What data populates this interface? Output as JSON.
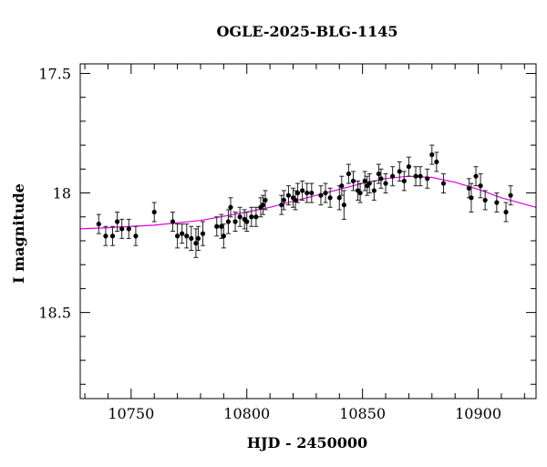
{
  "chart_data": {
    "type": "scatter",
    "title": "OGLE-2025-BLG-1145",
    "xlabel": "HJD - 2450000",
    "ylabel": "I magnitude",
    "xlim": [
      10728,
      10925
    ],
    "ylim": [
      18.86,
      17.46
    ],
    "y_inverted": true,
    "x_ticks": [
      10750,
      10800,
      10850,
      10900
    ],
    "x_tick_labels": [
      "10750",
      "10800",
      "10850",
      "10900"
    ],
    "x_minor_step": 10,
    "y_ticks": [
      17.5,
      18.0,
      18.5
    ],
    "y_tick_labels": [
      "17.5",
      "18",
      "18.5"
    ],
    "y_minor_step": 0.1,
    "grid": false,
    "colors": {
      "points": "#000000",
      "model": "#e000e0",
      "axes": "#000000"
    },
    "model_curve": {
      "x": [
        10728,
        10740,
        10760,
        10780,
        10800,
        10810,
        10820,
        10830,
        10840,
        10850,
        10860,
        10870,
        10880,
        10890,
        10900,
        10910,
        10925
      ],
      "y": [
        18.15,
        18.145,
        18.135,
        18.115,
        18.08,
        18.06,
        18.035,
        18.01,
        17.985,
        17.96,
        17.94,
        17.93,
        17.935,
        17.955,
        17.985,
        18.02,
        18.06
      ]
    },
    "series": [
      {
        "x": [
          10736,
          10739,
          10742,
          10744,
          10746,
          10749,
          10752,
          10760,
          10768,
          10770,
          10772,
          10774,
          10776,
          10778,
          10779,
          10781,
          10787,
          10789,
          10790,
          10792,
          10793,
          10795,
          10797,
          10799,
          10800,
          10802,
          10804,
          10806,
          10807,
          10808,
          10815,
          10816,
          10818,
          10820,
          10821,
          10822,
          10824,
          10826,
          10828,
          10832,
          10834,
          10836,
          10840,
          10841,
          10842,
          10844,
          10846,
          10848,
          10849,
          10851,
          10852,
          10853,
          10855,
          10857,
          10858,
          10860,
          10863,
          10866,
          10868,
          10870,
          10873,
          10875,
          10878,
          10880,
          10882,
          10885,
          10896,
          10897,
          10899,
          10901,
          10903,
          10908,
          10912,
          10914
        ],
        "y": [
          18.13,
          18.18,
          18.18,
          18.12,
          18.15,
          18.15,
          18.18,
          18.08,
          18.12,
          18.18,
          18.17,
          18.18,
          18.19,
          18.21,
          18.19,
          18.17,
          18.14,
          18.14,
          18.18,
          18.12,
          18.06,
          18.12,
          18.1,
          18.11,
          18.12,
          18.1,
          18.1,
          18.06,
          18.05,
          18.03,
          18.05,
          18.03,
          18.01,
          18.02,
          18.03,
          18.0,
          17.99,
          18.0,
          18.0,
          18.01,
          18.0,
          18.02,
          18.02,
          17.97,
          18.05,
          17.92,
          17.95,
          17.99,
          18.0,
          17.95,
          17.97,
          17.96,
          17.99,
          17.92,
          17.94,
          17.96,
          17.93,
          17.91,
          17.95,
          17.89,
          17.93,
          17.93,
          17.94,
          17.84,
          17.87,
          17.96,
          17.98,
          18.02,
          17.93,
          17.97,
          18.03,
          18.04,
          18.08,
          18.01
        ],
        "err": [
          0.04,
          0.04,
          0.04,
          0.04,
          0.04,
          0.04,
          0.04,
          0.04,
          0.04,
          0.05,
          0.04,
          0.05,
          0.05,
          0.06,
          0.05,
          0.05,
          0.04,
          0.05,
          0.05,
          0.05,
          0.04,
          0.04,
          0.04,
          0.04,
          0.04,
          0.04,
          0.04,
          0.04,
          0.04,
          0.04,
          0.04,
          0.04,
          0.04,
          0.04,
          0.04,
          0.04,
          0.04,
          0.04,
          0.04,
          0.04,
          0.04,
          0.04,
          0.05,
          0.04,
          0.06,
          0.04,
          0.04,
          0.04,
          0.04,
          0.04,
          0.04,
          0.04,
          0.04,
          0.04,
          0.04,
          0.04,
          0.04,
          0.04,
          0.04,
          0.04,
          0.04,
          0.04,
          0.04,
          0.04,
          0.04,
          0.04,
          0.04,
          0.06,
          0.04,
          0.05,
          0.04,
          0.04,
          0.04,
          0.04
        ]
      }
    ]
  }
}
